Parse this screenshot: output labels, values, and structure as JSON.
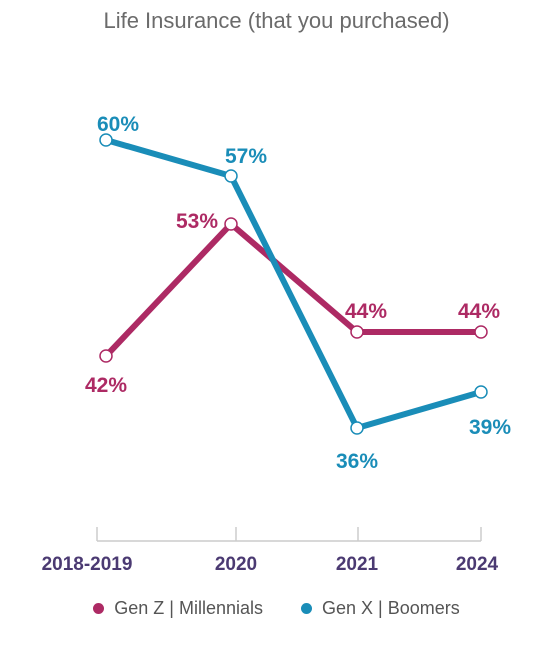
{
  "chart_data": {
    "type": "line",
    "title": "Life Insurance (that you purchased)",
    "categories": [
      "2018-2019",
      "2020",
      "2021",
      "2024"
    ],
    "series": [
      {
        "name": "Gen Z  |  Millennials",
        "values": [
          42,
          53,
          44,
          44
        ],
        "labels": [
          "42%",
          "53%",
          "44%",
          "44%"
        ],
        "color": "#ad2a64"
      },
      {
        "name": "Gen X  |  Boomers",
        "values": [
          60,
          57,
          36,
          39
        ],
        "labels": [
          "60%",
          "57%",
          "36%",
          "39%"
        ],
        "color": "#1a8db8"
      }
    ],
    "axis_label_color": "#4b3a72",
    "grid": false,
    "legend_position": "bottom"
  }
}
